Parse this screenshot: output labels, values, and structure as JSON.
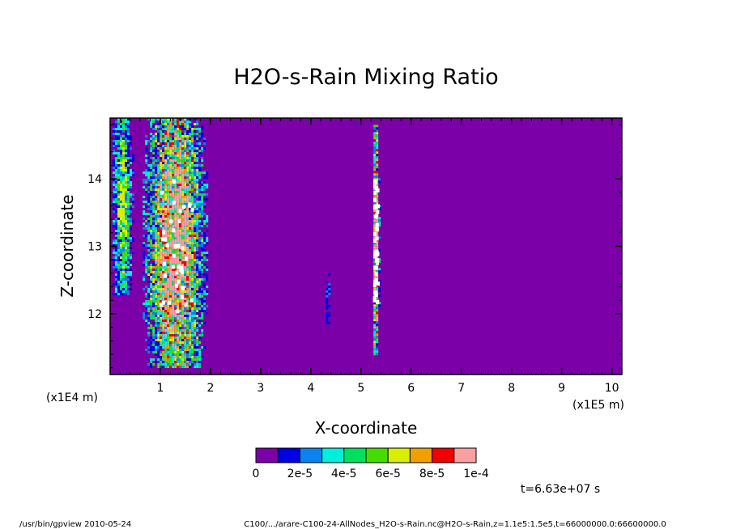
{
  "chart_data": {
    "type": "heatmap",
    "title": "H2O-s-Rain Mixing Ratio",
    "xlabel": "X-coordinate",
    "ylabel": "Z-coordinate",
    "x_unit_label": "(x1E5 m)",
    "y_unit_label": "(x1E4 m)",
    "xlim": [
      0,
      10.2
    ],
    "ylim": [
      11.1,
      14.9
    ],
    "x_ticks": [
      1,
      2,
      3,
      4,
      5,
      6,
      7,
      8,
      9,
      10
    ],
    "y_ticks": [
      12,
      13,
      14
    ],
    "background_color": "#7b00a8",
    "colorbar": {
      "levels": [
        0,
        1e-05,
        2e-05,
        3e-05,
        4e-05,
        5e-05,
        6e-05,
        7e-05,
        8e-05,
        9e-05
      ],
      "colors": [
        "#7b00a8",
        "#0000e0",
        "#0a82f0",
        "#00f0dc",
        "#00e060",
        "#46dc00",
        "#d8f000",
        "#f0a000",
        "#f00000",
        "#f8a0a0"
      ],
      "tick_labels": [
        "0",
        "2e-5",
        "4e-5",
        "6e-5",
        "8e-5",
        "1e-4"
      ]
    },
    "features": [
      {
        "x_range": [
          0.0,
          0.45
        ],
        "z_range": [
          12.3,
          14.9
        ],
        "max_value": 6e-05
      },
      {
        "x_range": [
          0.6,
          1.95
        ],
        "z_range": [
          11.2,
          14.9
        ],
        "max_value": 0.0001
      },
      {
        "x_range": [
          4.25,
          4.4
        ],
        "z_range": [
          11.8,
          12.6
        ],
        "max_value": 2e-05
      },
      {
        "x_range": [
          5.2,
          5.35
        ],
        "z_range": [
          11.4,
          14.8
        ],
        "max_value": 0.0001
      }
    ],
    "time_label": "t=6.63e+07 s"
  },
  "footer": {
    "program": "/usr/bin/gpview  2010-05-24",
    "file_info": "C100/.../arare-C100-24-AllNodes_H2O-s-Rain.nc@H2O-s-Rain,z=1.1e5:1.5e5,t=66000000.0:66600000.0"
  }
}
